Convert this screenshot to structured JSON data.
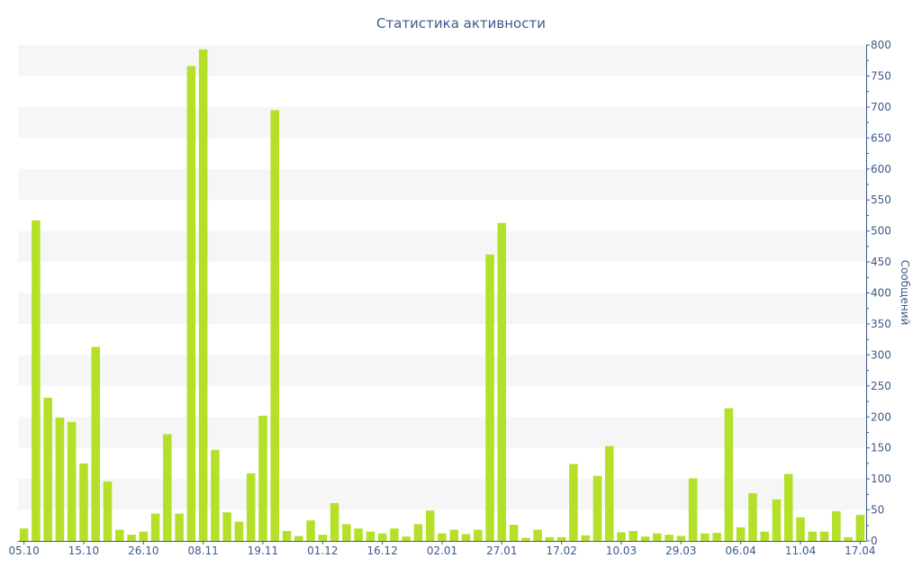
{
  "chart_data": {
    "type": "bar",
    "title": "Статистика активности",
    "xlabel": "",
    "ylabel": "Сообщений",
    "ylim": [
      0,
      800
    ],
    "y_ticks": [
      0,
      50,
      100,
      150,
      200,
      250,
      300,
      350,
      400,
      450,
      500,
      550,
      600,
      650,
      700,
      750,
      800
    ],
    "y_axis_position": "right",
    "grid": "alternating horizontal bands",
    "bar_color": "#b5e02a",
    "x_tick_labels": [
      {
        "index": 0,
        "label": "05.10"
      },
      {
        "index": 5,
        "label": "15.10"
      },
      {
        "index": 10,
        "label": "26.10"
      },
      {
        "index": 15,
        "label": "08.11"
      },
      {
        "index": 20,
        "label": "19.11"
      },
      {
        "index": 25,
        "label": "01.12"
      },
      {
        "index": 30,
        "label": "16.12"
      },
      {
        "index": 35,
        "label": "02.01"
      },
      {
        "index": 40,
        "label": "27.01"
      },
      {
        "index": 45,
        "label": "17.02"
      },
      {
        "index": 50,
        "label": "10.03"
      },
      {
        "index": 55,
        "label": "29.03"
      },
      {
        "index": 60,
        "label": "06.04"
      },
      {
        "index": 65,
        "label": "11.04"
      },
      {
        "index": 70,
        "label": "17.04"
      }
    ],
    "values": [
      20,
      517,
      231,
      199,
      192,
      125,
      313,
      96,
      18,
      10,
      15,
      44,
      172,
      44,
      766,
      793,
      147,
      46,
      31,
      109,
      202,
      695,
      16,
      8,
      33,
      10,
      61,
      27,
      20,
      15,
      12,
      20,
      7,
      27,
      49,
      12,
      18,
      11,
      18,
      462,
      513,
      26,
      5,
      18,
      6,
      6,
      124,
      9,
      105,
      153,
      14,
      16,
      7,
      12,
      10,
      8,
      101,
      12,
      13,
      214,
      22,
      77,
      15,
      67,
      108,
      38,
      15,
      15,
      48,
      6,
      42
    ]
  }
}
